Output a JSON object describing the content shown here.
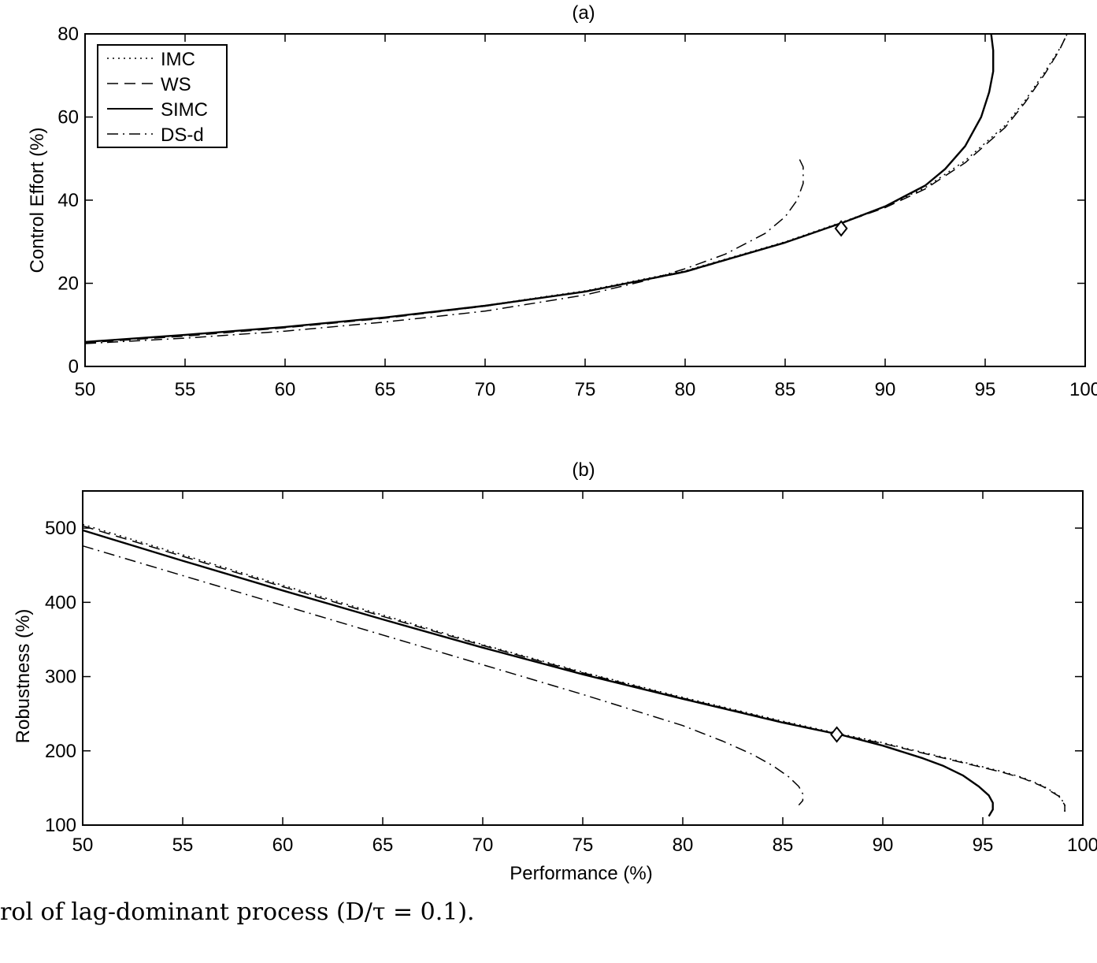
{
  "caption": "rol of lag-dominant process (D/τ = 0.1).",
  "chart_data": [
    {
      "type": "line",
      "title": "(a)",
      "xlabel": "",
      "ylabel": "Control Effort (%)",
      "xlim": [
        50,
        100
      ],
      "ylim": [
        0,
        80
      ],
      "xticks": [
        50,
        55,
        60,
        65,
        70,
        75,
        80,
        85,
        90,
        95,
        100
      ],
      "yticks": [
        0,
        20,
        40,
        60,
        80
      ],
      "legend": "top-left",
      "series": [
        {
          "name": "IMC",
          "style": "dotted",
          "x": [
            50,
            55,
            60,
            65,
            70,
            75,
            80,
            85,
            88,
            90,
            92,
            94,
            96,
            97,
            98,
            98.8,
            99.1
          ],
          "y": [
            5.8,
            7.5,
            9.5,
            11.8,
            14.7,
            18.2,
            23,
            30,
            35,
            38.5,
            43,
            49.5,
            58,
            64,
            71,
            77,
            80
          ]
        },
        {
          "name": "WS",
          "style": "dashed",
          "x": [
            50,
            55,
            60,
            65,
            70,
            75,
            80,
            85,
            88,
            90,
            92,
            94,
            96,
            97,
            98,
            98.7,
            99.1
          ],
          "y": [
            5.7,
            7.3,
            9.3,
            11.6,
            14.5,
            18,
            22.7,
            29.8,
            34.8,
            38.2,
            42.7,
            49,
            57.5,
            63.5,
            70.5,
            76,
            80
          ]
        },
        {
          "name": "SIMC",
          "style": "solid",
          "x": [
            50,
            55,
            60,
            65,
            70,
            75,
            80,
            85,
            88,
            90,
            92,
            93,
            94,
            94.8,
            95.2,
            95.4,
            95.4,
            95.3
          ],
          "y": [
            5.9,
            7.6,
            9.5,
            11.8,
            14.6,
            18,
            22.8,
            29.8,
            34.8,
            38.5,
            43.5,
            47.5,
            53,
            60,
            66,
            71,
            76,
            80
          ]
        },
        {
          "name": "DS-d",
          "style": "dashdot",
          "x": [
            50,
            55,
            60,
            65,
            70,
            75,
            78,
            80,
            82,
            84,
            85,
            85.6,
            85.9,
            85.9,
            85.7
          ],
          "y": [
            5.5,
            6.8,
            8.5,
            10.7,
            13.3,
            17.2,
            20.6,
            23.5,
            27,
            32,
            36,
            40,
            44,
            48,
            50
          ]
        }
      ],
      "markers": [
        {
          "shape": "diamond",
          "x": 87.8,
          "y": 33.2
        }
      ]
    },
    {
      "type": "line",
      "title": "(b)",
      "xlabel": "Performance (%)",
      "ylabel": "Robustness (%)",
      "xlim": [
        50,
        100
      ],
      "ylim": [
        100,
        550
      ],
      "xticks": [
        50,
        55,
        60,
        65,
        70,
        75,
        80,
        85,
        90,
        95,
        100
      ],
      "yticks": [
        100,
        200,
        300,
        400,
        500
      ],
      "series": [
        {
          "name": "IMC",
          "style": "dotted",
          "x": [
            50,
            55,
            60,
            65,
            70,
            75,
            80,
            85,
            88,
            90,
            92,
            94,
            96,
            97,
            98,
            98.8,
            99.1,
            99.1
          ],
          "y": [
            505,
            464,
            423,
            383,
            343,
            306,
            272,
            240,
            222,
            211,
            198,
            185,
            172,
            164,
            153,
            140,
            128,
            115
          ]
        },
        {
          "name": "WS",
          "style": "dashed",
          "x": [
            50,
            55,
            60,
            65,
            70,
            75,
            80,
            85,
            88,
            90,
            92,
            94,
            96,
            97,
            98,
            98.8,
            99.1,
            99.1
          ],
          "y": [
            503,
            462,
            421,
            381,
            342,
            305,
            271,
            239,
            221,
            210,
            197,
            184,
            171,
            163,
            152,
            139,
            127,
            118
          ]
        },
        {
          "name": "SIMC",
          "style": "solid",
          "x": [
            50,
            55,
            60,
            65,
            70,
            75,
            80,
            85,
            88,
            90,
            92,
            93,
            94,
            94.8,
            95.3,
            95.5,
            95.5,
            95.3
          ],
          "y": [
            497,
            456,
            416,
            377,
            339,
            303,
            270,
            238,
            221,
            207,
            190,
            180,
            167,
            152,
            140,
            130,
            121,
            112
          ]
        },
        {
          "name": "DS-d",
          "style": "dashdot",
          "x": [
            50,
            55,
            60,
            65,
            70,
            75,
            80,
            82,
            83.5,
            84.5,
            85.3,
            85.8,
            86,
            86,
            85.8
          ],
          "y": [
            476,
            436,
            396,
            356,
            316,
            276,
            234,
            213,
            195,
            180,
            165,
            152,
            142,
            133,
            127
          ]
        }
      ],
      "markers": [
        {
          "shape": "diamond",
          "x": 87.7,
          "y": 222
        }
      ]
    }
  ]
}
